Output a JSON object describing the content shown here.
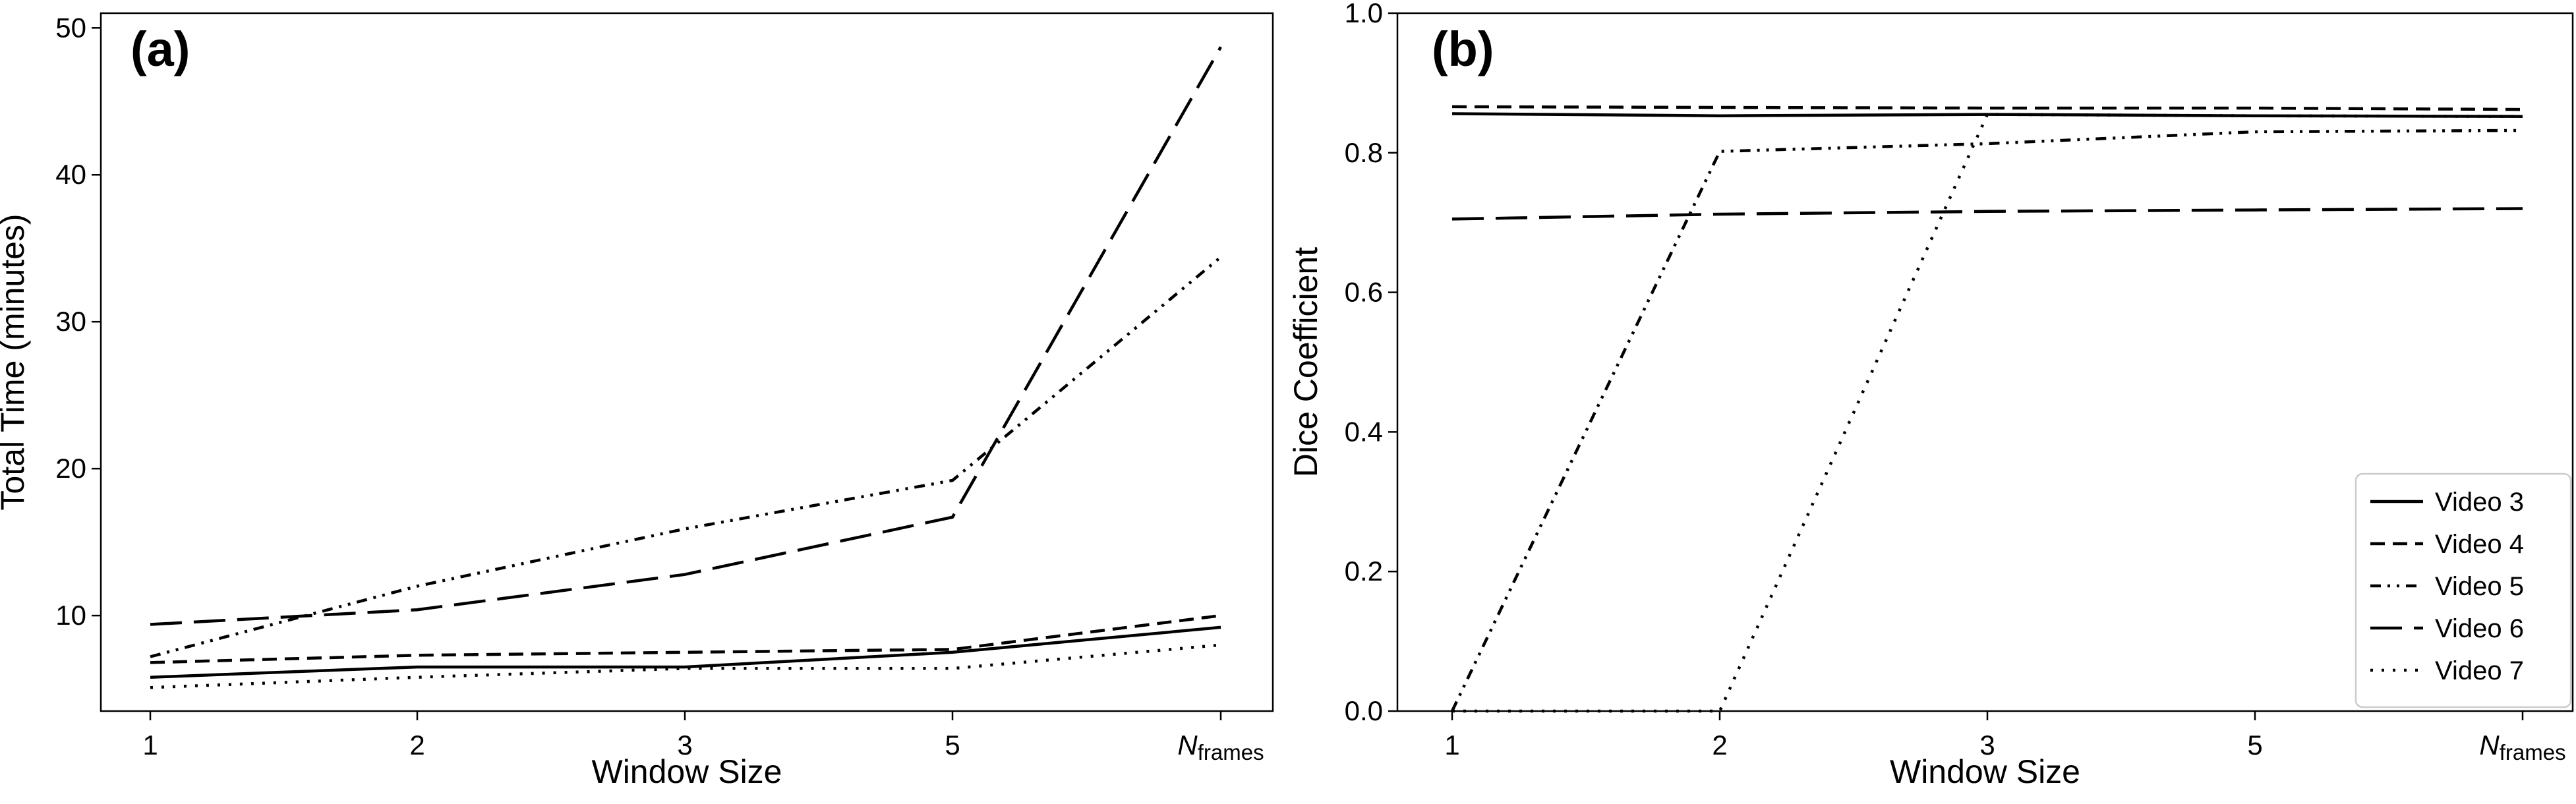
{
  "chart_data": [
    {
      "type": "line",
      "panel": "(a)",
      "categories": [
        "1",
        "2",
        "3",
        "5",
        "N_frames"
      ],
      "xlabel": "Window Size",
      "ylabel": "Total Time (minutes)",
      "ylim": [
        3.5,
        51
      ],
      "yticks": [
        10,
        20,
        30,
        40,
        50
      ],
      "grid": false,
      "series": [
        {
          "name": "Video 3",
          "dash": "solid",
          "values": [
            5.8,
            6.5,
            6.5,
            7.5,
            9.2
          ]
        },
        {
          "name": "Video 4",
          "dash": "dashed",
          "values": [
            6.8,
            7.3,
            7.5,
            7.7,
            10.0
          ]
        },
        {
          "name": "Video 5",
          "dash": "dashdotdot",
          "values": [
            7.2,
            12.0,
            15.9,
            19.2,
            34.4
          ]
        },
        {
          "name": "Video 6",
          "dash": "longdash",
          "values": [
            9.4,
            10.4,
            12.8,
            16.7,
            48.7
          ]
        },
        {
          "name": "Video 7",
          "dash": "dotted",
          "values": [
            5.1,
            5.8,
            6.4,
            6.4,
            8.0
          ]
        }
      ]
    },
    {
      "type": "line",
      "panel": "(b)",
      "categories": [
        "1",
        "2",
        "3",
        "5",
        "N_frames"
      ],
      "xlabel": "Window Size",
      "ylabel": "Dice Coefficient",
      "ylim": [
        0.0,
        1.0
      ],
      "yticks": [
        0.0,
        0.2,
        0.4,
        0.6,
        0.8,
        1.0
      ],
      "grid": false,
      "legend_position": "lower-right",
      "series": [
        {
          "name": "Video 3",
          "dash": "solid",
          "values": [
            0.856,
            0.853,
            0.855,
            0.853,
            0.852
          ]
        },
        {
          "name": "Video 4",
          "dash": "dashed",
          "values": [
            0.866,
            0.865,
            0.864,
            0.864,
            0.862
          ]
        },
        {
          "name": "Video 5",
          "dash": "dashdotdot",
          "values": [
            0.0,
            0.802,
            0.813,
            0.83,
            0.832
          ]
        },
        {
          "name": "Video 6",
          "dash": "longdash",
          "values": [
            0.705,
            0.712,
            0.716,
            0.718,
            0.72
          ]
        },
        {
          "name": "Video 7",
          "dash": "dotted",
          "values": [
            0.0,
            0.0,
            0.855,
            0.853,
            0.852
          ]
        }
      ]
    }
  ],
  "axis_text": {
    "nframes_main": "N",
    "nframes_sub": "frames"
  }
}
